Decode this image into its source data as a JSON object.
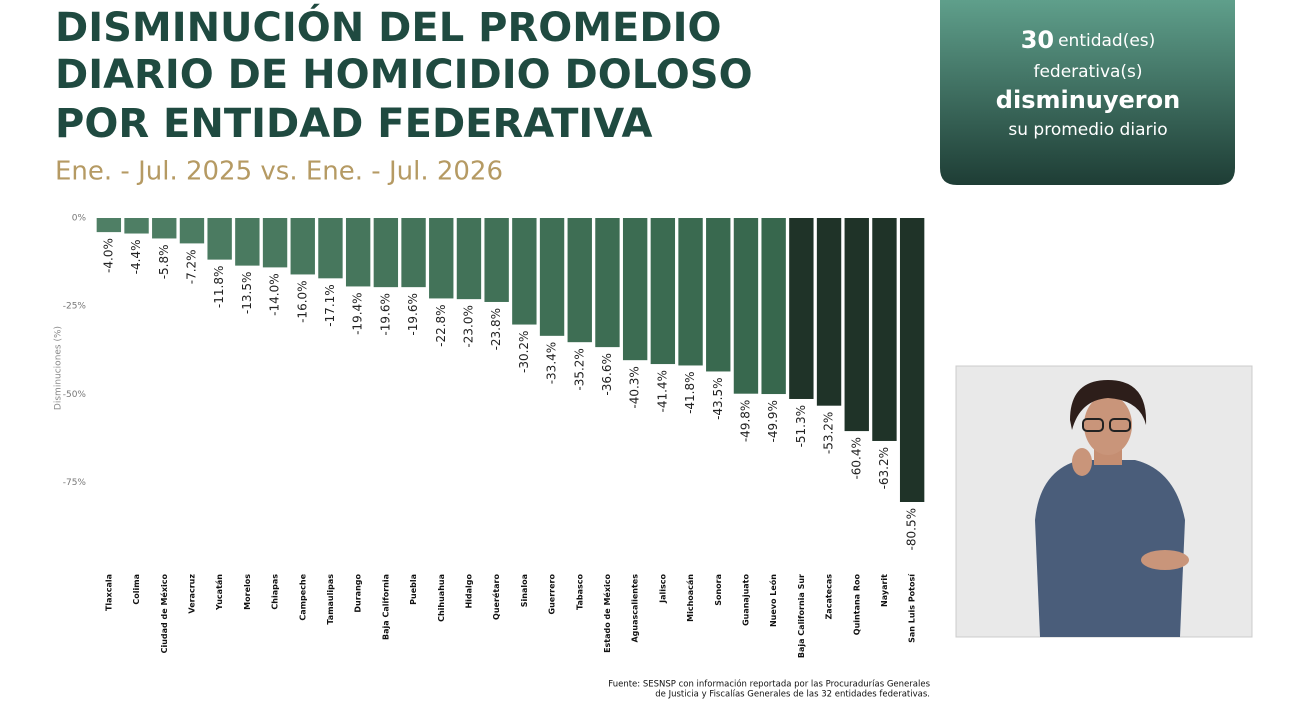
{
  "header": {
    "title_lines": [
      "DISMINUCIÓN DEL PROMEDIO",
      "DIARIO DE HOMICIDIO DOLOSO",
      "POR ENTIDAD FEDERATIVA"
    ],
    "subtitle": "Ene. - Jul. 2025 vs. Ene. - Jul. 2026"
  },
  "info_box": {
    "count": "30",
    "line1": "entidad(es)",
    "line2": "federativa(s)",
    "line3": "disminuyeron",
    "line4": "su promedio diario"
  },
  "source": [
    "Fuente: SESNSP con información reportada por las Procuradurías Generales",
    "de Justicia y Fiscalías Generales de las 32 entidades federativas."
  ],
  "chart_data": {
    "type": "bar",
    "y_label": "Disminuciones (%)",
    "categories": [
      "Tlaxcala",
      "Colima",
      "Ciudad de México",
      "Veracruz",
      "Yucatán",
      "Morelos",
      "Chiapas",
      "Campeche",
      "Tamaulipas",
      "Durango",
      "Baja California",
      "Puebla",
      "Chihuahua",
      "Hidalgo",
      "Querétaro",
      "Sinaloa",
      "Guerrero",
      "Tabasco",
      "Estado de México",
      "Aguascalientes",
      "Jalisco",
      "Michoacán",
      "Sonora",
      "Guanajuato",
      "Nuevo León",
      "Baja California Sur",
      "Zacatecas",
      "Quintana Roo",
      "Nayarit",
      "San Luis Potosí"
    ],
    "values": [
      -4.0,
      -4.4,
      -5.8,
      -7.2,
      -11.8,
      -13.5,
      -14.0,
      -16.0,
      -17.1,
      -19.4,
      -19.6,
      -19.6,
      -22.8,
      -23.0,
      -23.8,
      -30.2,
      -33.4,
      -35.2,
      -36.6,
      -40.3,
      -41.4,
      -41.8,
      -43.5,
      -49.8,
      -49.9,
      -51.3,
      -53.2,
      -60.4,
      -63.2,
      -80.5
    ],
    "value_labels": [
      "-4.0%",
      "-4.4%",
      "-5.8%",
      "-7.2%",
      "-11.8%",
      "-13.5%",
      "-14.0%",
      "-16.0%",
      "-17.1%",
      "-19.4%",
      "-19.6%",
      "-19.6%",
      "-22.8%",
      "-23.0%",
      "-23.8%",
      "-30.2%",
      "-33.4%",
      "-35.2%",
      "-36.6%",
      "-40.3%",
      "-41.4%",
      "-41.8%",
      "-43.5%",
      "-49.8%",
      "-49.9%",
      "-51.3%",
      "-53.2%",
      "-60.4%",
      "-63.2%",
      "-80.5%"
    ],
    "colors": [
      "#4f7f65",
      "#4e7e64",
      "#4d7d63",
      "#4c7c62",
      "#4b7b61",
      "#4a7a60",
      "#49795f",
      "#48785e",
      "#47775d",
      "#46765c",
      "#45755b",
      "#44745a",
      "#437359",
      "#427258",
      "#417157",
      "#407056",
      "#3f6f55",
      "#3e6e54",
      "#3d6d53",
      "#3c6c52",
      "#3b6b51",
      "#3a6a50",
      "#39694f",
      "#38684e",
      "#37674d",
      "#1f3328",
      "#1f3328",
      "#1f3328",
      "#1f3328",
      "#1f3328"
    ],
    "ylim": [
      -80.5,
      0
    ],
    "yticks": [
      {
        "value": 0,
        "label": "0%"
      },
      {
        "value": -25,
        "label": "-25%"
      },
      {
        "value": -50,
        "label": "-50%"
      },
      {
        "value": -75,
        "label": "-75%"
      }
    ],
    "grid": false
  }
}
